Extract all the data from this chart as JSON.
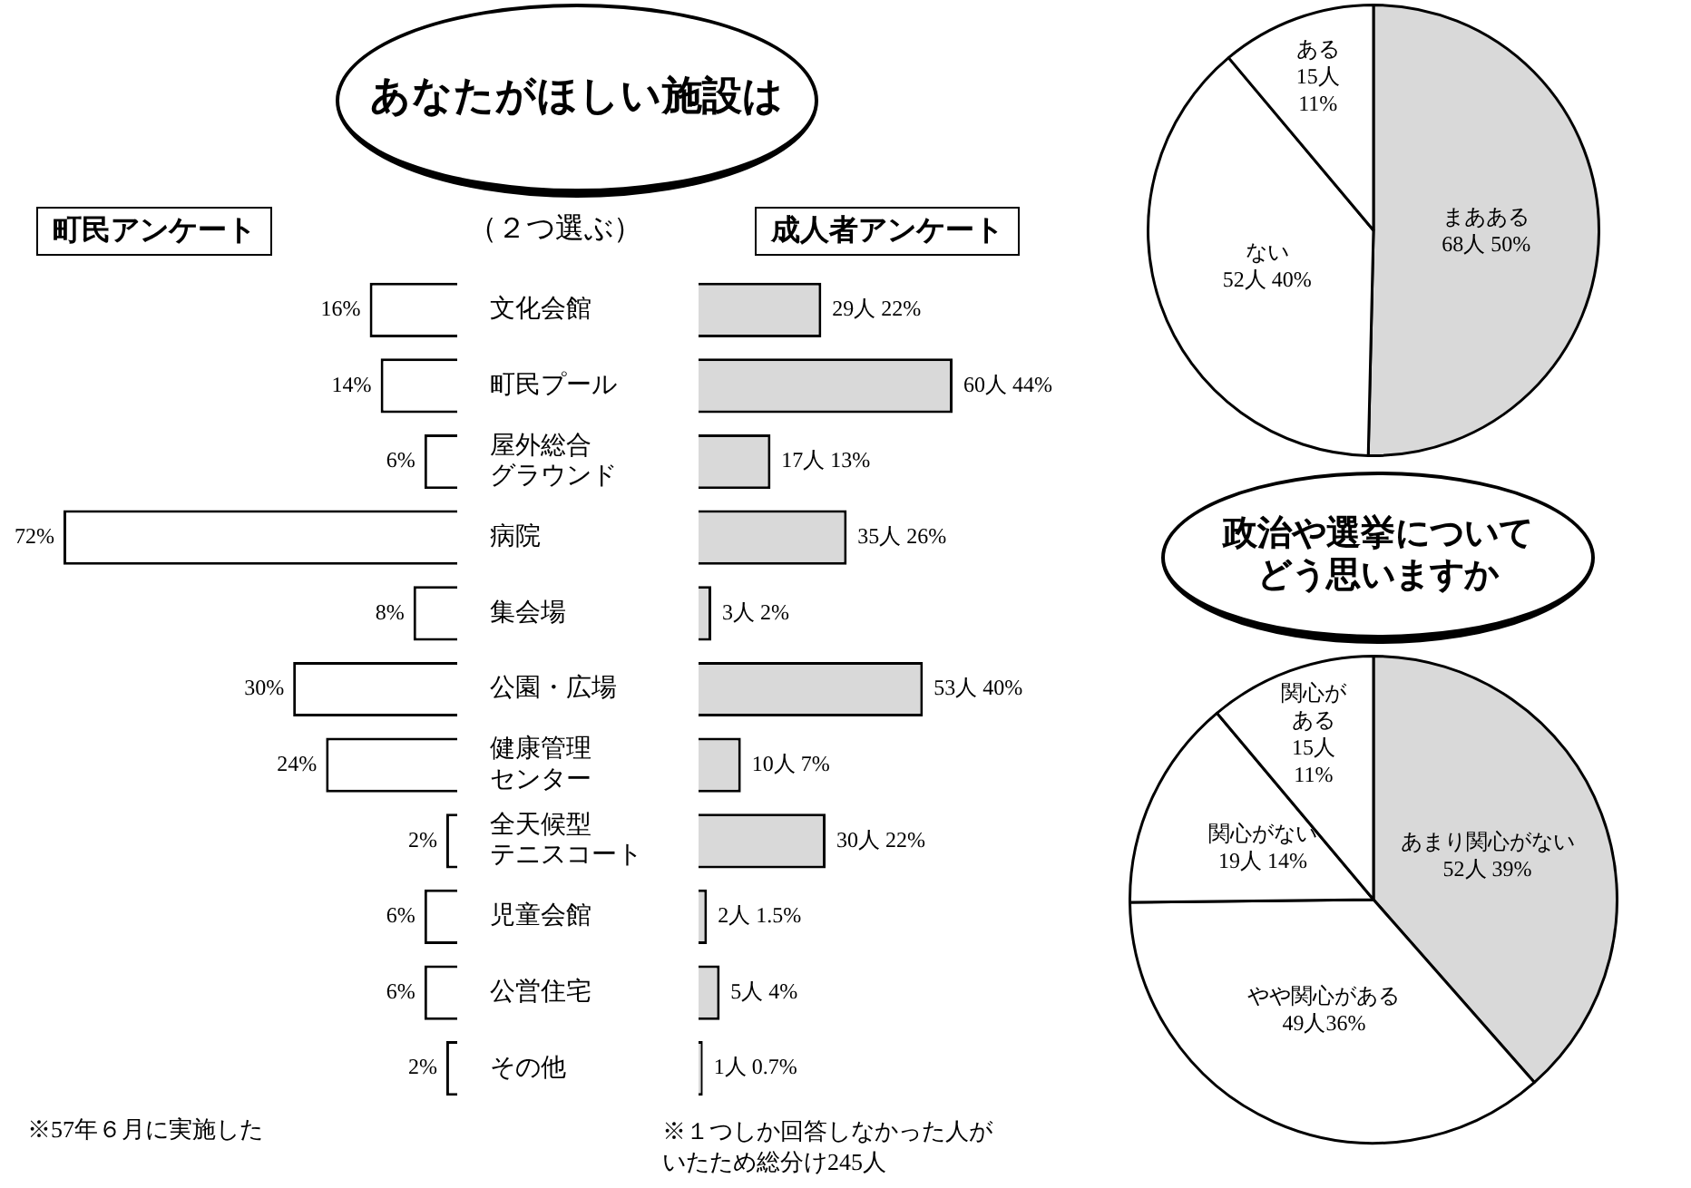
{
  "chart_data": [
    {
      "type": "bar",
      "orientation": "horizontal",
      "title": "あなたがほしい施設は",
      "subtitle": "（２つ選ぶ）",
      "annotations": [
        "町民アンケート",
        "※57年６月に実施した"
      ],
      "categories": [
        "文化会館",
        "町民プール",
        "屋外総合グラウンド",
        "病院",
        "集会場",
        "公園・広場",
        "健康管理センター",
        "全天候型テニスコート",
        "児童会館",
        "公営住宅",
        "その他"
      ],
      "values": [
        16,
        14,
        6,
        72,
        8,
        30,
        24,
        2,
        6,
        6,
        2
      ],
      "color": "#ffffff",
      "value_labels": [
        "16%",
        "14%",
        "6%",
        "72%",
        "8%",
        "30%",
        "24%",
        "2%",
        "6%",
        "6%",
        "2%"
      ],
      "xlim": [
        72,
        0
      ],
      "tick_labels": "y"
    },
    {
      "type": "bar",
      "orientation": "horizontal",
      "title": "成人者アンケート",
      "annotations": [
        "※１つしか回答しなかった人がいたため総分け245人"
      ],
      "categories": [
        "文化会館",
        "町民プール",
        "屋外総合グラウンド",
        "病院",
        "集会場",
        "公園・広場",
        "健康管理センター",
        "全天候型テニスコート",
        "児童会館",
        "公営住宅",
        "その他"
      ],
      "values": [
        29,
        60,
        17,
        35,
        3,
        53,
        10,
        30,
        2,
        5,
        1
      ],
      "color": "#d9d9d9",
      "value_labels": [
        "29人 22%",
        "60人 44%",
        "17人 13%",
        "35人 26%",
        "3人 2%",
        "53人 40%",
        "10人 7%",
        "30人 22%",
        "2人 1.5%",
        "5人 4%",
        "1人 0.7%"
      ],
      "tick_labels": false
    },
    {
      "type": "pie",
      "categories": [
        "まあある",
        "ない",
        "ある"
      ],
      "values": [
        68,
        52,
        15
      ],
      "colors": [
        "#d9d9d9",
        "#ffffff",
        "#ffffff"
      ],
      "value_labels": [
        "68人 50%",
        "52人 40%",
        "15人 11%"
      ]
    },
    {
      "type": "pie",
      "title": "政治や選挙についてどう思いますか",
      "categories": [
        "あまり関心がない",
        "やや関心がある",
        "関心がない",
        "関心がある"
      ],
      "values": [
        52,
        49,
        19,
        15
      ],
      "colors": [
        "#d9d9d9",
        "#ffffff",
        "#ffffff",
        "#ffffff"
      ],
      "value_labels": [
        "52人 39%",
        "49人36%",
        "19人 14%",
        "15人 11%"
      ]
    }
  ]
}
